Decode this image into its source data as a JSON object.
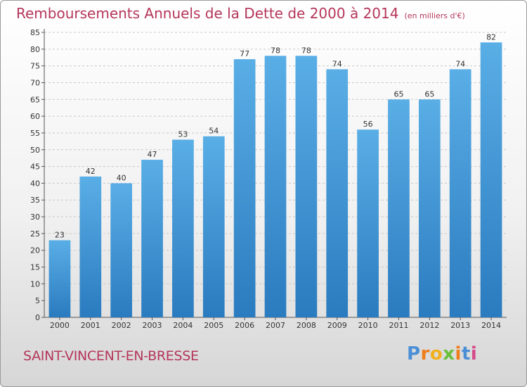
{
  "header": {
    "title": "Remboursements Annuels de la Dette de 2000 à 2014",
    "unit": "(en milliers d'€)"
  },
  "footer": {
    "commune": "SAINT-VINCENT-EN-BRESSE",
    "logo_letters": [
      "P",
      "r",
      "o",
      "x",
      "i",
      "t",
      "i"
    ]
  },
  "colors": {
    "title": "#b5365a",
    "bar_top": "#5aaee6",
    "bar_bottom": "#2a7bbf",
    "grid": "#c8c8c8",
    "logo": [
      "#4a8fd6",
      "#ef7d1a",
      "#f2b01e",
      "#6abf3a",
      "#ef7d1a",
      "#4a8fd6",
      "#d64a8a"
    ]
  },
  "chart_data": {
    "type": "bar",
    "title": "Remboursements Annuels de la Dette de 2000 à 2014",
    "unit": "(en milliers d'€)",
    "categories": [
      "2000",
      "2001",
      "2002",
      "2003",
      "2004",
      "2005",
      "2006",
      "2007",
      "2008",
      "2009",
      "2010",
      "2011",
      "2012",
      "2013",
      "2014"
    ],
    "values": [
      23,
      42,
      40,
      47,
      53,
      54,
      77,
      78,
      78,
      74,
      56,
      65,
      65,
      74,
      82
    ],
    "ylim": [
      0,
      85
    ],
    "ytick_step": 5,
    "grid": true,
    "legend": "none"
  }
}
